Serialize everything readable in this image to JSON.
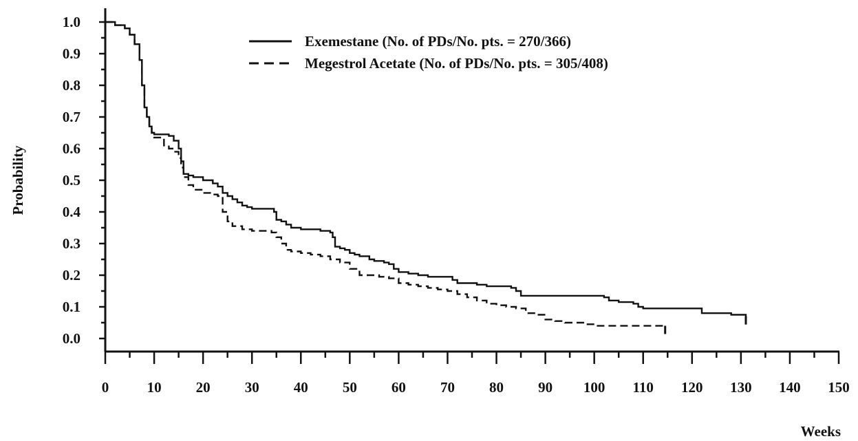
{
  "chart_data": {
    "type": "line",
    "title": "",
    "xlabel": "Weeks",
    "ylabel": "Probability",
    "xlim": [
      0,
      150
    ],
    "ylim": [
      0,
      1.0
    ],
    "x_ticks": [
      0,
      10,
      20,
      30,
      40,
      50,
      60,
      70,
      80,
      90,
      100,
      110,
      120,
      130,
      140,
      150
    ],
    "y_ticks": [
      0.0,
      0.1,
      0.2,
      0.3,
      0.4,
      0.5,
      0.6,
      0.7,
      0.8,
      0.9,
      1.0
    ],
    "x_tick_labels": [
      "0",
      "10",
      "20",
      "30",
      "40",
      "50",
      "60",
      "70",
      "80",
      "90",
      "100",
      "110",
      "120",
      "130",
      "140",
      "150"
    ],
    "y_tick_labels": [
      "0.0",
      "0.1",
      "0.2",
      "0.3",
      "0.4",
      "0.5",
      "0.6",
      "0.7",
      "0.8",
      "0.9",
      "1.0"
    ],
    "grid": false,
    "legend_position": "top-center",
    "series": [
      {
        "name": "Exemestane (No. of PDs/No. pts. = 270/366)",
        "line_style": "solid",
        "color": "#111111",
        "x": [
          0,
          2,
          4,
          5,
          6,
          7,
          7.5,
          8,
          8.5,
          9,
          9.5,
          10,
          12,
          13,
          14,
          15,
          15.5,
          16,
          17,
          18,
          20,
          22,
          23,
          24,
          25,
          26,
          27,
          28,
          29,
          30,
          32,
          34,
          34.5,
          35,
          36,
          37,
          38,
          40,
          42,
          44,
          46,
          46.5,
          47,
          48,
          49,
          50,
          51,
          52,
          54,
          55,
          57,
          58,
          59,
          60,
          62,
          64,
          66,
          68,
          70,
          71,
          72,
          74,
          76,
          78,
          80,
          82,
          83,
          84,
          85,
          86,
          90,
          95,
          100,
          102,
          103,
          104,
          105,
          106,
          108,
          109,
          110,
          112,
          115,
          120,
          122,
          125,
          128,
          130,
          131
        ],
        "y": [
          1.0,
          0.99,
          0.98,
          0.96,
          0.93,
          0.88,
          0.8,
          0.73,
          0.7,
          0.67,
          0.65,
          0.645,
          0.645,
          0.64,
          0.625,
          0.6,
          0.56,
          0.52,
          0.515,
          0.51,
          0.5,
          0.49,
          0.48,
          0.46,
          0.45,
          0.44,
          0.43,
          0.42,
          0.415,
          0.41,
          0.41,
          0.41,
          0.4,
          0.375,
          0.37,
          0.36,
          0.35,
          0.345,
          0.345,
          0.34,
          0.335,
          0.32,
          0.29,
          0.285,
          0.28,
          0.27,
          0.265,
          0.26,
          0.25,
          0.245,
          0.24,
          0.235,
          0.22,
          0.21,
          0.205,
          0.2,
          0.195,
          0.195,
          0.195,
          0.185,
          0.175,
          0.175,
          0.17,
          0.165,
          0.165,
          0.165,
          0.16,
          0.15,
          0.135,
          0.135,
          0.135,
          0.135,
          0.135,
          0.13,
          0.12,
          0.12,
          0.115,
          0.115,
          0.11,
          0.1,
          0.095,
          0.095,
          0.095,
          0.095,
          0.08,
          0.08,
          0.075,
          0.075,
          0.055
        ]
      },
      {
        "name": "Megestrol Acetate (No. of PDs/No. pts. = 305/408)",
        "line_style": "dashed",
        "color": "#111111",
        "x": [
          0,
          2,
          4,
          5,
          6,
          7,
          7.5,
          8,
          8.5,
          9,
          9.5,
          10,
          12,
          13,
          14,
          15,
          15.5,
          16,
          17,
          18,
          20,
          22,
          23,
          24,
          25,
          26,
          28,
          30,
          32,
          34,
          35,
          36,
          37,
          38,
          40,
          42,
          44,
          46,
          48,
          50,
          52,
          54,
          56,
          58,
          60,
          62,
          64,
          66,
          68,
          70,
          72,
          74,
          76,
          78,
          80,
          82,
          84,
          86,
          88,
          90,
          92,
          94,
          96,
          98,
          100,
          105,
          110,
          113,
          114.5
        ],
        "y": [
          1.0,
          0.99,
          0.98,
          0.96,
          0.93,
          0.88,
          0.8,
          0.73,
          0.7,
          0.67,
          0.65,
          0.635,
          0.61,
          0.6,
          0.59,
          0.57,
          0.54,
          0.51,
          0.485,
          0.47,
          0.46,
          0.455,
          0.45,
          0.4,
          0.37,
          0.355,
          0.345,
          0.34,
          0.34,
          0.335,
          0.32,
          0.3,
          0.28,
          0.275,
          0.27,
          0.265,
          0.26,
          0.25,
          0.24,
          0.22,
          0.2,
          0.2,
          0.195,
          0.19,
          0.175,
          0.17,
          0.165,
          0.16,
          0.155,
          0.15,
          0.14,
          0.13,
          0.12,
          0.11,
          0.105,
          0.1,
          0.095,
          0.08,
          0.075,
          0.06,
          0.055,
          0.05,
          0.05,
          0.045,
          0.04,
          0.04,
          0.04,
          0.04,
          0.025
        ]
      }
    ]
  }
}
